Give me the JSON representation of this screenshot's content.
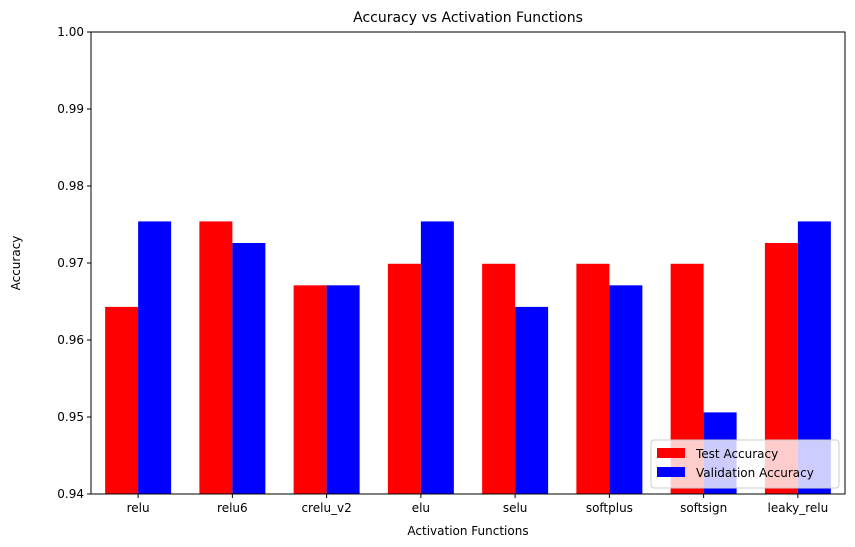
{
  "chart_data": {
    "type": "bar",
    "title": "Accuracy vs Activation Functions",
    "xlabel": "Activation Functions",
    "ylabel": "Accuracy",
    "categories": [
      "relu",
      "relu6",
      "crelu_v2",
      "elu",
      "selu",
      "softplus",
      "softsign",
      "leaky_relu"
    ],
    "series": [
      {
        "name": "Test Accuracy",
        "color": "#ff0000",
        "values": [
          0.9643,
          0.9754,
          0.9671,
          0.9699,
          0.9699,
          0.9699,
          0.9699,
          0.9726
        ]
      },
      {
        "name": "Validation Accuracy",
        "color": "#0000ff",
        "values": [
          0.9754,
          0.9726,
          0.9671,
          0.9754,
          0.9643,
          0.9671,
          0.9506,
          0.9754
        ]
      }
    ],
    "ylim": [
      0.94,
      1.0
    ],
    "yticks": [
      "0.94",
      "0.95",
      "0.96",
      "0.97",
      "0.98",
      "0.99",
      "1.00"
    ],
    "grid": false,
    "legend_position": "lower-right"
  }
}
